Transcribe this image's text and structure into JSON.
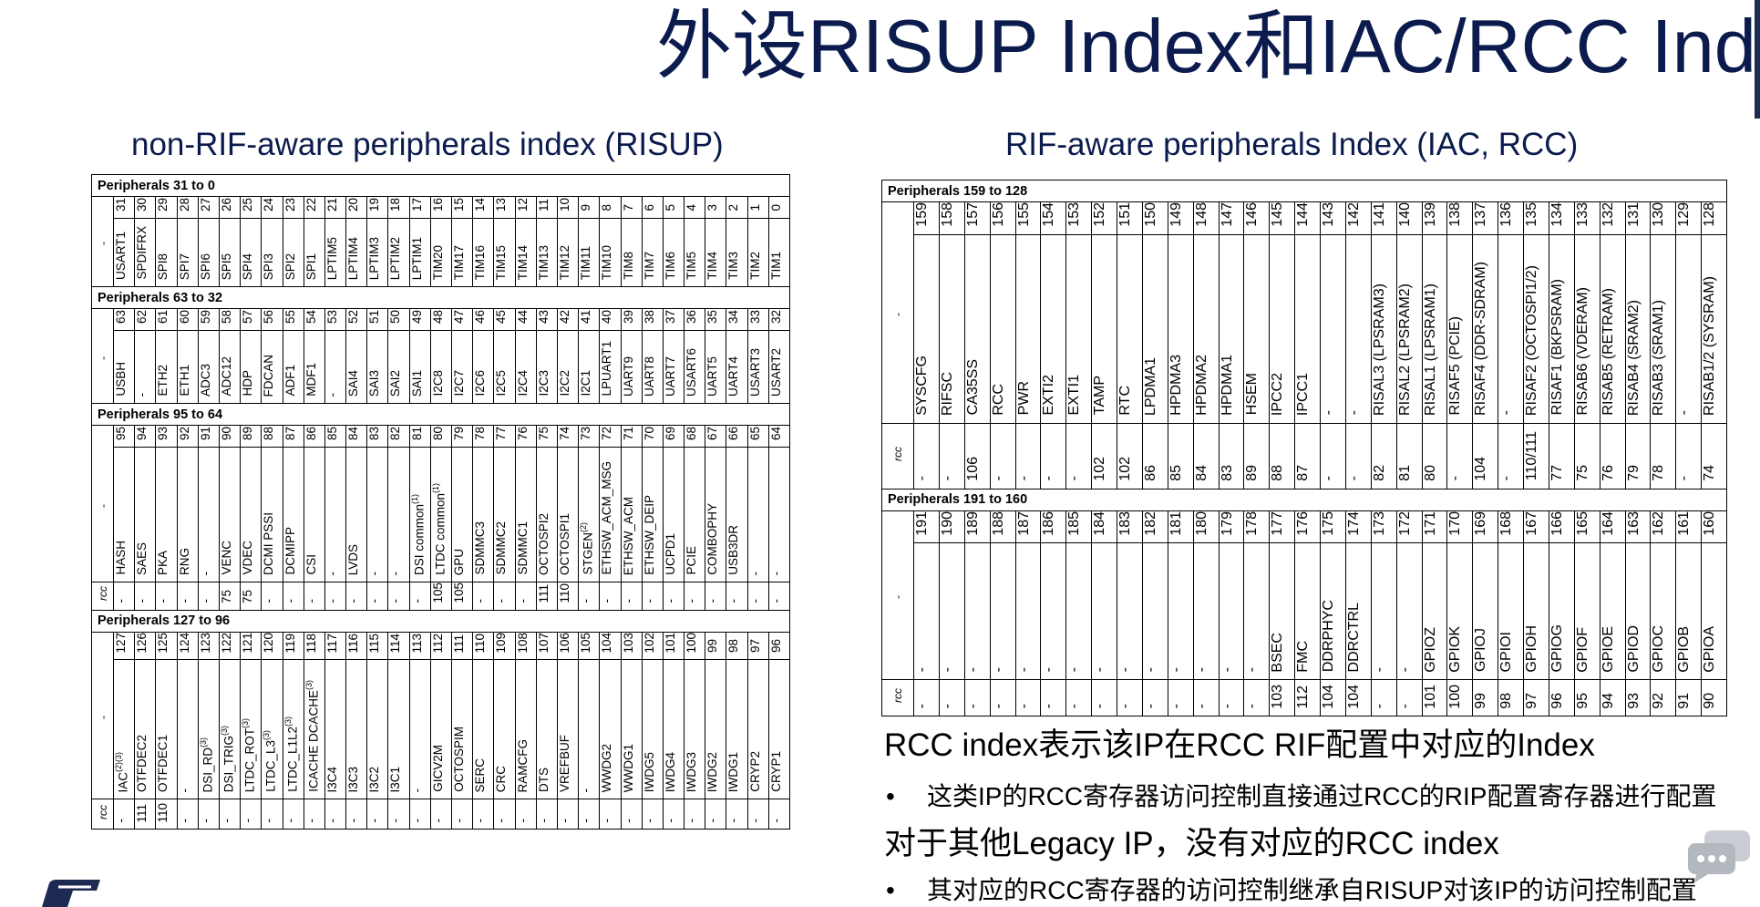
{
  "slide": {
    "title": "外设RISUP Index和IAC/RCC Index"
  },
  "left": {
    "title": "non-RIF-aware peripherals index (RISUP)",
    "sections": [
      {
        "header": "Peripherals 31 to 0",
        "labels": [
          "-"
        ],
        "numbers": [
          "31",
          "30",
          "29",
          "28",
          "27",
          "26",
          "25",
          "24",
          "23",
          "22",
          "21",
          "20",
          "19",
          "18",
          "17",
          "16",
          "15",
          "14",
          "13",
          "12",
          "11",
          "10",
          "9",
          "8",
          "7",
          "6",
          "5",
          "4",
          "3",
          "2",
          "1",
          "0"
        ],
        "rows": [
          [
            "USART1",
            "SPDIFRX",
            "SPI8",
            "SPI7",
            "SPI6",
            "SPI5",
            "SPI4",
            "SPI3",
            "SPI2",
            "SPI1",
            "LPTIM5",
            "LPTIM4",
            "LPTIM3",
            "LPTIM2",
            "LPTIM1",
            "TIM20",
            "TIM17",
            "TIM16",
            "TIM15",
            "TIM14",
            "TIM13",
            "TIM12",
            "TIM11",
            "TIM10",
            "TIM8",
            "TIM7",
            "TIM6",
            "TIM5",
            "TIM4",
            "TIM3",
            "TIM2",
            "TIM1"
          ]
        ]
      },
      {
        "header": "Peripherals 63 to 32",
        "labels": [
          "-"
        ],
        "numbers": [
          "63",
          "62",
          "61",
          "60",
          "59",
          "58",
          "57",
          "56",
          "55",
          "54",
          "53",
          "52",
          "51",
          "50",
          "49",
          "48",
          "47",
          "46",
          "45",
          "44",
          "43",
          "42",
          "41",
          "40",
          "39",
          "38",
          "37",
          "36",
          "35",
          "34",
          "33",
          "32"
        ],
        "rows": [
          [
            "USBH",
            "-",
            "ETH2",
            "ETH1",
            "ADC3",
            "ADC12",
            "HDP",
            "FDCAN",
            "ADF1",
            "MDF1",
            "-",
            "SAI4",
            "SAI3",
            "SAI2",
            "SAI1",
            "I2C8",
            "I2C7",
            "I2C6",
            "I2C5",
            "I2C4",
            "I2C3",
            "I2C2",
            "I2C1",
            "LPUART1",
            "UART9",
            "UART8",
            "UART7",
            "USART6",
            "UART5",
            "UART4",
            "USART3",
            "USART2"
          ]
        ]
      },
      {
        "header": "Peripherals 95 to 64",
        "labels": [
          "-",
          "rcc"
        ],
        "numbers": [
          "95",
          "94",
          "93",
          "92",
          "91",
          "90",
          "89",
          "88",
          "87",
          "86",
          "85",
          "84",
          "83",
          "82",
          "81",
          "80",
          "79",
          "78",
          "77",
          "76",
          "75",
          "74",
          "73",
          "72",
          "71",
          "70",
          "69",
          "68",
          "67",
          "66",
          "65",
          "64"
        ],
        "rows": [
          [
            "HASH",
            "SAES",
            "PKA",
            "RNG",
            "-",
            "VENC",
            "VDEC",
            "DCMI PSSI",
            "DCMIPP",
            "CSI",
            "-",
            "LVDS",
            "-",
            "-",
            "DSI common⁽¹⁾",
            "LTDC common⁽¹⁾",
            "GPU",
            "SDMMC3",
            "SDMMC2",
            "SDMMC1",
            "OCTOSPI2",
            "OCTOSPI1",
            "STGEN⁽²⁾",
            "ETHSW_ACM_MSG",
            "ETHSW_ACM",
            "ETHSW_DEIP",
            "UCPD1",
            "PCIE",
            "COMBOPHY",
            "USB3DR",
            "-",
            "-"
          ],
          [
            "-",
            "-",
            "-",
            "-",
            "-",
            "75",
            "75",
            "-",
            "-",
            "-",
            "-",
            "-",
            "-",
            "-",
            "-",
            "105",
            "105",
            "-",
            "-",
            "-",
            "111",
            "110",
            "-",
            "-",
            "-",
            "-",
            "-",
            "-",
            "-",
            "-",
            "-",
            "-"
          ]
        ]
      },
      {
        "header": "Peripherals 127 to 96",
        "labels": [
          "-",
          "rcc"
        ],
        "numbers": [
          "127",
          "126",
          "125",
          "124",
          "123",
          "122",
          "121",
          "120",
          "119",
          "118",
          "117",
          "116",
          "115",
          "114",
          "113",
          "112",
          "111",
          "110",
          "109",
          "108",
          "107",
          "106",
          "105",
          "104",
          "103",
          "102",
          "101",
          "100",
          "99",
          "98",
          "97",
          "96"
        ],
        "rows": [
          [
            "IAC⁽²⁾⁽³⁾",
            "OTFDEC2",
            "OTFDEC1",
            "-",
            "DSI_RD⁽³⁾",
            "DSI_TRIG⁽³⁾",
            "LTDC_ROT⁽³⁾",
            "LTDC_L3⁽³⁾",
            "LTDC_L1L2⁽³⁾",
            "ICACHE DCACHE⁽³⁾",
            "I3C4",
            "I3C3",
            "I3C2",
            "I3C1",
            "-",
            "GICV2M",
            "OCTOSPIM",
            "SERC",
            "CRC",
            "RAMCFG",
            "DTS",
            "VREFBUF",
            "-",
            "WWDG2",
            "WWDG1",
            "IWDG5",
            "IWDG4",
            "IWDG3",
            "IWDG2",
            "IWDG1",
            "CRYP2",
            "CRYP1"
          ],
          [
            "-",
            "111",
            "110",
            "-",
            "-",
            "-",
            "-",
            "-",
            "-",
            "-",
            "-",
            "-",
            "-",
            "-",
            "-",
            "-",
            "-",
            "-",
            "-",
            "-",
            "-",
            "-",
            "-",
            "-",
            "-",
            "-",
            "-",
            "-",
            "-",
            "-",
            "-",
            "-"
          ]
        ]
      }
    ]
  },
  "right": {
    "title": "RIF-aware peripherals Index (IAC, RCC)",
    "sections": [
      {
        "header": "Peripherals 159 to 128",
        "labels": [
          "-",
          "rcc"
        ],
        "numbers": [
          "159",
          "158",
          "157",
          "156",
          "155",
          "154",
          "153",
          "152",
          "151",
          "150",
          "149",
          "148",
          "147",
          "146",
          "145",
          "144",
          "143",
          "142",
          "141",
          "140",
          "139",
          "138",
          "137",
          "136",
          "135",
          "134",
          "133",
          "132",
          "131",
          "130",
          "129",
          "128"
        ],
        "rows": [
          [
            "SYSCFG",
            "RIFSC",
            "CA35SS",
            "RCC",
            "PWR",
            "EXTI2",
            "EXTI1",
            "TAMP",
            "RTC",
            "LPDMA1",
            "HPDMA3",
            "HPDMA2",
            "HPDMA1",
            "HSEM",
            "IPCC2",
            "IPCC1",
            "-",
            "-",
            "RISAL3 (LPSRAM3)",
            "RISAL2 (LPSRAM2)",
            "RISAL1 (LPSRAM1)",
            "RISAF5 (PCIE)",
            "RISAF4 (DDR-SDRAM)",
            "-",
            "RISAF2 (OCTOSPI1/2)",
            "RISAF1 (BKPSRAM)",
            "RISAB6 (VDERAM)",
            "RISAB5 (RETRAM)",
            "RISAB4 (SRAM2)",
            "RISAB3 (SRAM1)",
            "-",
            "RISAB1/2 (SYSRAM)"
          ],
          [
            "-",
            "-",
            "106",
            "-",
            "-",
            "-",
            "-",
            "102",
            "102",
            "86",
            "85",
            "84",
            "83",
            "89",
            "88",
            "87",
            "-",
            "-",
            "82",
            "81",
            "80",
            "-",
            "104",
            "-",
            "110/111",
            "77",
            "75",
            "76",
            "79",
            "78",
            "-",
            "74"
          ]
        ]
      },
      {
        "header": "Peripherals 191 to 160",
        "labels": [
          "-",
          "rcc"
        ],
        "numbers": [
          "191",
          "190",
          "189",
          "188",
          "187",
          "186",
          "185",
          "184",
          "183",
          "182",
          "181",
          "180",
          "179",
          "178",
          "177",
          "176",
          "175",
          "174",
          "173",
          "172",
          "171",
          "170",
          "169",
          "168",
          "167",
          "166",
          "165",
          "164",
          "163",
          "162",
          "161",
          "160"
        ],
        "rows": [
          [
            "-",
            "-",
            "-",
            "-",
            "-",
            "-",
            "-",
            "-",
            "-",
            "-",
            "-",
            "-",
            "-",
            "-",
            "BSEC",
            "FMC",
            "DDRPHYC",
            "DDRCTRL",
            "-",
            "-",
            "GPIOZ",
            "GPIOK",
            "GPIOJ",
            "GPIOI",
            "GPIOH",
            "GPIOG",
            "GPIOF",
            "GPIOE",
            "GPIOD",
            "GPIOC",
            "GPIOB",
            "GPIOA"
          ],
          [
            "-",
            "-",
            "-",
            "-",
            "-",
            "-",
            "-",
            "-",
            "-",
            "-",
            "-",
            "-",
            "-",
            "-",
            "103",
            "112",
            "104",
            "104",
            "-",
            "-",
            "101",
            "100",
            "99",
            "98",
            "97",
            "96",
            "95",
            "94",
            "93",
            "92",
            "91",
            "90"
          ]
        ]
      }
    ]
  },
  "notes": {
    "rcc_heading": "RCC index表示该IP在RCC RIF配置中对应的Index",
    "bullet1": "这类IP的RCC寄存器访问控制直接通过RCC的RIP配置寄存器进行配置",
    "legacy_heading": "对于其他Legacy IP，没有对应的RCC index",
    "bullet2": "其对应的RCC寄存器的访问控制继承自RISUP对该IP的访问控制配置",
    "bullet_symbol": "•"
  },
  "icons": {
    "logo": "st-logo",
    "forum": "chat-bubble-icon"
  },
  "colors": {
    "title": "#0b1b4d",
    "logo": "#1d2a52",
    "forum_icon": "#b8bcc3"
  }
}
